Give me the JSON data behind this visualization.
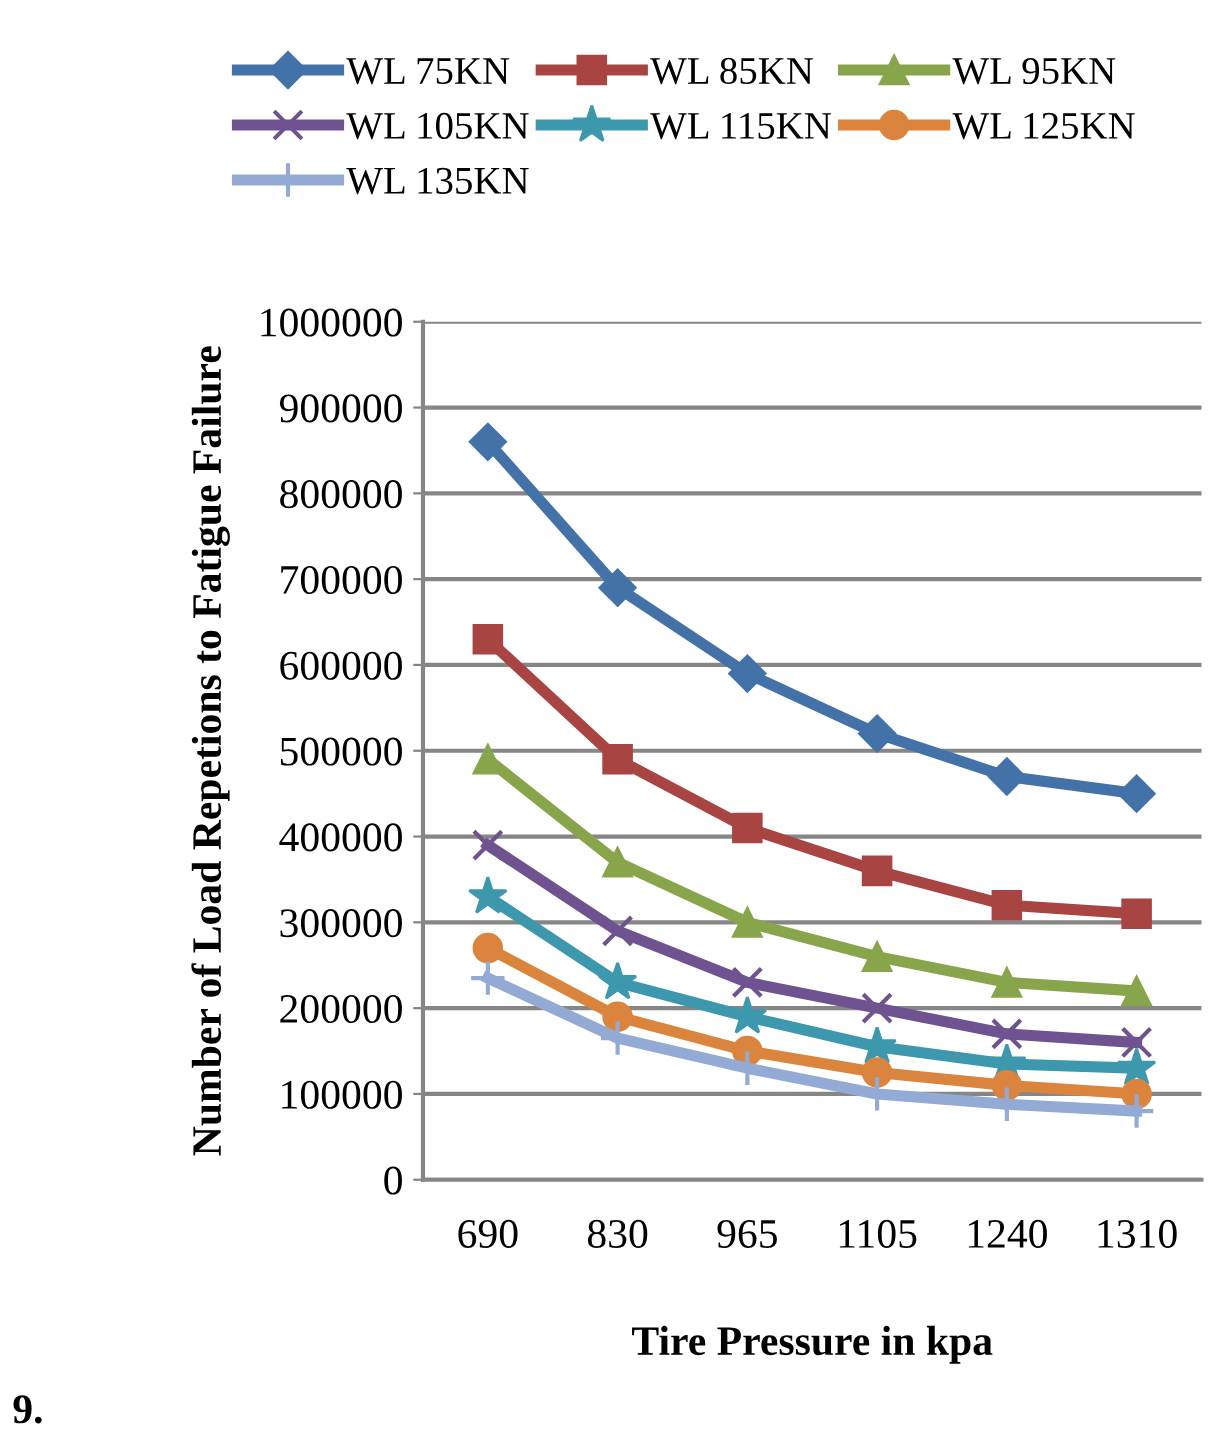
{
  "chart_data": {
    "type": "line",
    "xlabel": "Tire Pressure in kpa",
    "ylabel": "Number of Load Repetions to Fatigue Failure",
    "categories": [
      "690",
      "830",
      "965",
      "1105",
      "1240",
      "1310"
    ],
    "series": [
      {
        "name": "WL 75KN",
        "color": "#4372a9",
        "marker": "diamond",
        "values": [
          860000,
          690000,
          590000,
          520000,
          470000,
          450000
        ]
      },
      {
        "name": "WL 85KN",
        "color": "#a84442",
        "marker": "square",
        "values": [
          630000,
          490000,
          410000,
          360000,
          320000,
          310000
        ]
      },
      {
        "name": "WL 95KN",
        "color": "#88a54b",
        "marker": "triangle",
        "values": [
          490000,
          370000,
          300000,
          260000,
          230000,
          220000
        ]
      },
      {
        "name": "WL 105KN",
        "color": "#6f5391",
        "marker": "cross",
        "values": [
          390000,
          290000,
          230000,
          200000,
          170000,
          160000
        ]
      },
      {
        "name": "WL 115KN",
        "color": "#3d98ae",
        "marker": "star",
        "values": [
          330000,
          230000,
          190000,
          155000,
          135000,
          130000
        ]
      },
      {
        "name": "WL 125KN",
        "color": "#db843d",
        "marker": "circle",
        "values": [
          270000,
          190000,
          150000,
          125000,
          110000,
          100000
        ]
      },
      {
        "name": "WL 135KN",
        "color": "#93aad4",
        "marker": "plus",
        "values": [
          235000,
          165000,
          130000,
          100000,
          88000,
          80000
        ]
      }
    ],
    "ylim": [
      0,
      1000000
    ],
    "yticks": [
      0,
      100000,
      200000,
      300000,
      400000,
      500000,
      600000,
      700000,
      800000,
      900000,
      1000000
    ],
    "grid": "y",
    "legend": "top",
    "annotations": [
      "9."
    ]
  }
}
